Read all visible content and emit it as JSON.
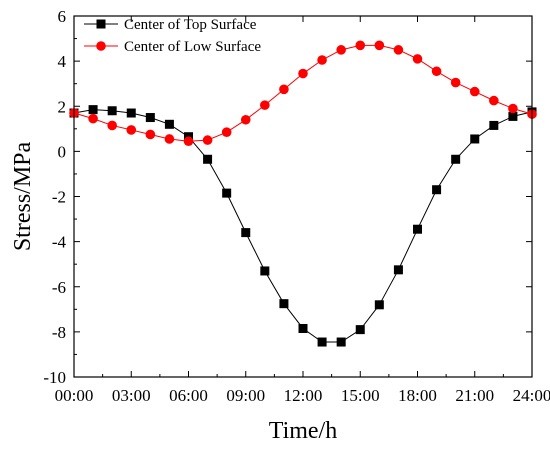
{
  "chart_data": {
    "type": "line",
    "xlabel": "Time/h",
    "ylabel": "Stress/MPa",
    "xlim": [
      0,
      24
    ],
    "ylim": [
      -10,
      6
    ],
    "x_ticks": [
      {
        "value": 0,
        "label": "00:00"
      },
      {
        "value": 3,
        "label": "03:00"
      },
      {
        "value": 6,
        "label": "06:00"
      },
      {
        "value": 9,
        "label": "09:00"
      },
      {
        "value": 12,
        "label": "12:00"
      },
      {
        "value": 15,
        "label": "15:00"
      },
      {
        "value": 18,
        "label": "18:00"
      },
      {
        "value": 21,
        "label": "21:00"
      },
      {
        "value": 24,
        "label": "24:00"
      }
    ],
    "y_ticks": [
      {
        "value": -10,
        "label": "-10"
      },
      {
        "value": -8,
        "label": "-8"
      },
      {
        "value": -6,
        "label": "-6"
      },
      {
        "value": -4,
        "label": "-4"
      },
      {
        "value": -2,
        "label": "-2"
      },
      {
        "value": 0,
        "label": "0"
      },
      {
        "value": 2,
        "label": "2"
      },
      {
        "value": 4,
        "label": "4"
      },
      {
        "value": 6,
        "label": "6"
      }
    ],
    "grid": false,
    "legend_position": "top-left",
    "x": [
      0,
      1,
      2,
      3,
      4,
      5,
      6,
      7,
      8,
      9,
      10,
      11,
      12,
      13,
      14,
      15,
      16,
      17,
      18,
      19,
      20,
      21,
      22,
      23,
      24
    ],
    "series": [
      {
        "name": "Center of Top Surface",
        "color": "#000000",
        "marker": "square",
        "values": [
          1.7,
          1.85,
          1.8,
          1.7,
          1.5,
          1.2,
          0.65,
          -0.35,
          -1.85,
          -3.6,
          -5.3,
          -6.75,
          -7.85,
          -8.45,
          -8.45,
          -7.9,
          -6.8,
          -5.25,
          -3.45,
          -1.7,
          -0.35,
          0.55,
          1.15,
          1.55,
          1.75
        ]
      },
      {
        "name": "Center of Low Surface",
        "color": "#ff0000",
        "marker": "circle",
        "values": [
          1.7,
          1.45,
          1.15,
          0.95,
          0.75,
          0.55,
          0.45,
          0.5,
          0.85,
          1.4,
          2.05,
          2.75,
          3.45,
          4.05,
          4.5,
          4.7,
          4.7,
          4.5,
          4.1,
          3.55,
          3.05,
          2.65,
          2.25,
          1.9,
          1.65
        ]
      }
    ]
  }
}
